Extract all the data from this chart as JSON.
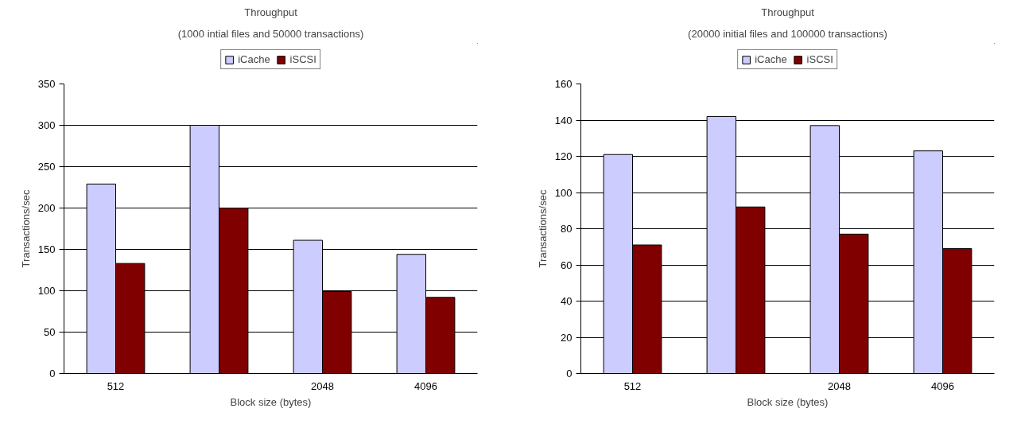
{
  "chart_data": [
    {
      "type": "bar",
      "title": "Throughput",
      "subtitle": "(1000 intial files and 50000 transactions)",
      "xlabel": "Block size (bytes)",
      "ylabel": "Transactions/sec",
      "categories": [
        "512",
        null,
        "2048",
        "4096"
      ],
      "series": [
        {
          "name": "iCache",
          "color": "#ccccff",
          "values": [
            229,
            300,
            161,
            144
          ]
        },
        {
          "name": "iSCSI",
          "color": "#800000",
          "values": [
            133,
            200,
            99,
            92
          ]
        }
      ],
      "ylim": [
        0,
        350
      ],
      "yticks": [
        0,
        50,
        100,
        150,
        200,
        250,
        300,
        350
      ],
      "grid": "y",
      "legend": "top"
    },
    {
      "type": "bar",
      "title": "Throughput",
      "subtitle": "(20000 initial files and 100000 transactions)",
      "xlabel": "Block size (bytes)",
      "ylabel": "Transactions/sec",
      "categories": [
        "512",
        null,
        "2048",
        "4096"
      ],
      "series": [
        {
          "name": "iCache",
          "color": "#ccccff",
          "values": [
            121,
            142,
            137,
            123
          ]
        },
        {
          "name": "iSCSI",
          "color": "#800000",
          "values": [
            71,
            92,
            77,
            69
          ]
        }
      ],
      "ylim": [
        0,
        160
      ],
      "yticks": [
        0,
        20,
        40,
        60,
        80,
        100,
        120,
        140,
        160
      ],
      "grid": "y",
      "legend": "top"
    }
  ]
}
